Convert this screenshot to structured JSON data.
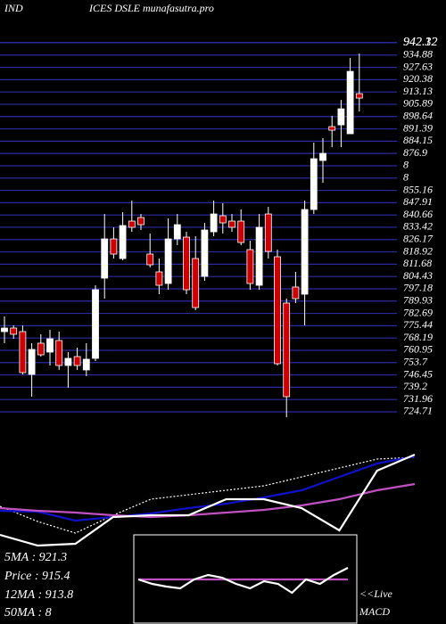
{
  "chart_data": [
    {
      "type": "candlestick",
      "title": "IND",
      "subtitle": "ICES DSLE munafasutra.pro",
      "annotations": [
        "5MA : 921.3",
        "Price : 915.4",
        "12MA : 913.8",
        "50MA : 8"
      ],
      "up_color": "#ffffff",
      "down_color": "#cc0000",
      "grid_color": "#2a2aa0",
      "grid": true,
      "ylim": [
        720.5,
        946.3
      ],
      "yticks": [
        942.12,
        942.32,
        934.88,
        927.63,
        920.38,
        913.13,
        905.89,
        898.64,
        891.39,
        884.15,
        876.9,
        {
          "value": 869.65,
          "label": "8"
        },
        {
          "value": 862.4,
          "label": "8"
        },
        855.16,
        847.91,
        840.66,
        833.42,
        826.17,
        818.92,
        811.68,
        804.43,
        797.18,
        789.93,
        782.69,
        775.44,
        768.19,
        760.95,
        753.7,
        746.45,
        739.2,
        731.96,
        724.71
      ],
      "open": [
        771.96,
        774.06,
        771.96,
        746.76,
        765.14,
        759.89,
        766.71,
        752.01,
        757.26,
        749.39,
        756.21,
        803.46,
        826.56,
        815.01,
        837.06,
        839.16,
        817.64,
        807.14,
        800.31,
        826.56,
        827.61,
        815.01,
        804.51,
        830.76,
        840.21,
        837.06,
        837.06,
        820.26,
        799.26,
        841.26,
        816.06,
        788.76,
        798.21,
        794.01,
        843.89,
        872.76,
        892.71,
        893.76,
        888.51,
        912.14
      ],
      "high": [
        780.89,
        775.64,
        775.64,
        765.14,
        770.39,
        773.01,
        771.96,
        759.89,
        762.51,
        765.14,
        799.26,
        841.26,
        833.39,
        842.31,
        849.14,
        841.26,
        829.71,
        815.01,
        838.64,
        841.26,
        830.76,
        828.14,
        836.01,
        849.14,
        847.56,
        841.26,
        843.89,
        825.51,
        841.26,
        845.46,
        820.26,
        791.39,
        807.14,
        849.14,
        883.26,
        885.89,
        899.01,
        908.46,
        933.14,
        935.76
      ],
      "low": [
        765.14,
        767.76,
        746.76,
        733.64,
        757.26,
        752.01,
        749.39,
        738.89,
        749.39,
        745.71,
        754.64,
        791.39,
        815.01,
        813.96,
        830.76,
        831.81,
        809.76,
        794.01,
        796.64,
        822.89,
        794.01,
        784.56,
        801.89,
        828.14,
        829.71,
        830.76,
        822.89,
        796.64,
        796.64,
        815.01,
        752.01,
        721.56,
        788.76,
        775.64,
        841.26,
        859.64,
        880.64,
        880.64,
        888.51,
        901.64
      ],
      "close": [
        774.06,
        770.39,
        747.81,
        761.46,
        758.31,
        767.76,
        752.01,
        756.21,
        752.01,
        755.69,
        796.64,
        826.56,
        817.64,
        834.44,
        833.39,
        834.96,
        811.34,
        799.26,
        826.56,
        834.96,
        796.64,
        786.14,
        831.81,
        841.26,
        836.01,
        833.39,
        824.46,
        800.31,
        833.39,
        819.21,
        753.06,
        733.64,
        791.39,
        843.89,
        873.81,
        876.96,
        890.61,
        903.21,
        925.26,
        909.51
      ]
    },
    {
      "type": "line",
      "ylim": [
        0,
        220
      ],
      "series": [
        {
          "color": "#ffffff",
          "dash": true,
          "values": [
            132,
            115,
            102,
            122,
            140,
            145,
            150,
            155,
            165,
            175,
            185,
            187
          ]
        },
        {
          "color": "#1010c8",
          "dash": false,
          "values": [
            127,
            126,
            116,
            120,
            124,
            130,
            135,
            142,
            150,
            165,
            180,
            188
          ]
        },
        {
          "color": "#c050c0",
          "dash": false,
          "values": [
            130,
            127,
            125,
            122,
            120,
            122,
            125,
            128,
            133,
            140,
            150,
            157
          ]
        },
        {
          "color": "#ffffff",
          "dash": false,
          "values": [
            100,
            88,
            90,
            120,
            122,
            122,
            140,
            140,
            130,
            105,
            172,
            190
          ]
        }
      ]
    },
    {
      "type": "line",
      "title": "MACD",
      "annotations": [
        "<<Live"
      ],
      "ylim": [
        0,
        100
      ],
      "series": [
        {
          "color": "#c050c0",
          "dash": false,
          "values": [
            50,
            50,
            50,
            50,
            50,
            50,
            50,
            50,
            50,
            50,
            50,
            50,
            50,
            50,
            50,
            50
          ]
        },
        {
          "color": "#ffffff",
          "dash": false,
          "values": [
            50,
            45,
            42,
            40,
            50,
            55,
            52,
            45,
            40,
            48,
            45,
            35,
            50,
            45,
            55,
            63
          ]
        }
      ]
    }
  ]
}
